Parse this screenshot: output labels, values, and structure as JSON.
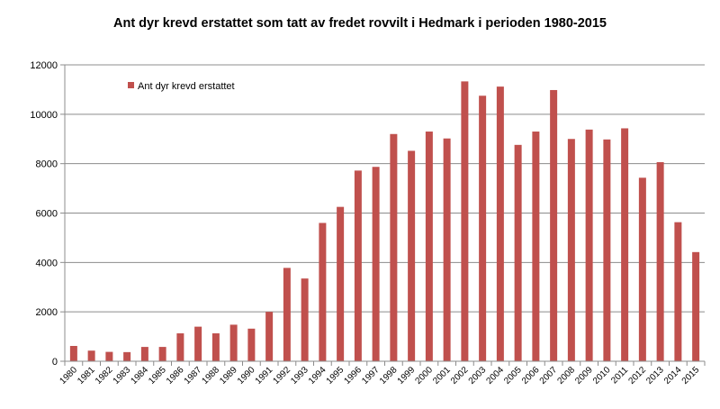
{
  "chart_data": {
    "type": "bar",
    "title": "Ant dyr krevd erstattet som tatt av fredet rovvilt i Hedmark i perioden 1980-2015",
    "xlabel": "",
    "ylabel": "",
    "ylim": [
      0,
      12000
    ],
    "yticks": [
      0,
      2000,
      4000,
      6000,
      8000,
      10000,
      12000
    ],
    "grid": true,
    "legend_position": "top-left",
    "bar_color": "#c0504d",
    "categories": [
      "1980",
      "1981",
      "1982",
      "1983",
      "1984",
      "1985",
      "1986",
      "1987",
      "1988",
      "1989",
      "1990",
      "1991",
      "1992",
      "1993",
      "1994",
      "1995",
      "1996",
      "1997",
      "1998",
      "1999",
      "2000",
      "2001",
      "2002",
      "2003",
      "2004",
      "2005",
      "2006",
      "2007",
      "2008",
      "2009",
      "2010",
      "2011",
      "2012",
      "2013",
      "2014",
      "2015"
    ],
    "series": [
      {
        "name": "Ant dyr krevd erstattet",
        "values": [
          620,
          430,
          380,
          370,
          580,
          580,
          1130,
          1400,
          1130,
          1480,
          1320,
          2000,
          3780,
          3350,
          5600,
          6250,
          7720,
          7870,
          9200,
          8520,
          9300,
          9020,
          11330,
          10750,
          11120,
          8760,
          9300,
          10980,
          9000,
          9380,
          8980,
          9430,
          7430,
          8060,
          5630,
          4420
        ]
      }
    ]
  }
}
